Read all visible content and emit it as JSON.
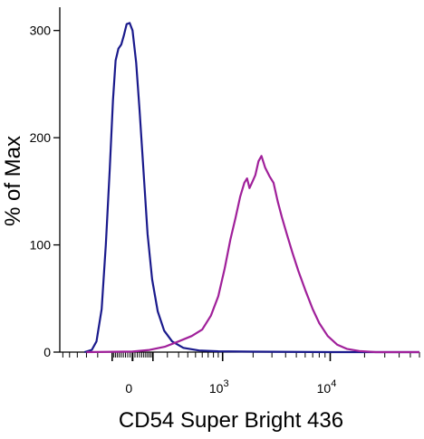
{
  "chart_data": {
    "type": "line",
    "title": "",
    "xlabel": "CD54 Super Bright 436",
    "ylabel": "% of Max",
    "x_scale": "biexponential",
    "x_tick_labels": [
      {
        "value": 0,
        "base": "0",
        "exp": ""
      },
      {
        "value": 1000,
        "base": "10",
        "exp": "3"
      },
      {
        "value": 10000,
        "base": "10",
        "exp": "4"
      }
    ],
    "y_ticks": [
      0,
      100,
      200,
      300
    ],
    "ylim": [
      0,
      320
    ],
    "grid": false,
    "series": [
      {
        "color": "#1a1a8c",
        "points": [
          [
            -320,
            0
          ],
          [
            -250,
            2
          ],
          [
            -210,
            10
          ],
          [
            -170,
            40
          ],
          [
            -140,
            100
          ],
          [
            -115,
            170
          ],
          [
            -95,
            235
          ],
          [
            -80,
            272
          ],
          [
            -65,
            283
          ],
          [
            -50,
            287
          ],
          [
            -38,
            295
          ],
          [
            -25,
            306
          ],
          [
            -12,
            307
          ],
          [
            0,
            300
          ],
          [
            15,
            270
          ],
          [
            30,
            225
          ],
          [
            50,
            165
          ],
          [
            70,
            110
          ],
          [
            95,
            68
          ],
          [
            130,
            38
          ],
          [
            175,
            20
          ],
          [
            240,
            10
          ],
          [
            350,
            4
          ],
          [
            550,
            1.5
          ],
          [
            900,
            0.8
          ],
          [
            2000,
            0.4
          ],
          [
            10000,
            0
          ],
          [
            60000,
            0
          ]
        ]
      },
      {
        "color": "#a0209a",
        "points": [
          [
            -300,
            0
          ],
          [
            0,
            0.5
          ],
          [
            80,
            2
          ],
          [
            180,
            5
          ],
          [
            300,
            10
          ],
          [
            450,
            15
          ],
          [
            600,
            21
          ],
          [
            750,
            34
          ],
          [
            900,
            52
          ],
          [
            1050,
            78
          ],
          [
            1200,
            105
          ],
          [
            1350,
            125
          ],
          [
            1500,
            145
          ],
          [
            1650,
            158
          ],
          [
            1750,
            162
          ],
          [
            1850,
            153
          ],
          [
            1950,
            158
          ],
          [
            2100,
            165
          ],
          [
            2250,
            178
          ],
          [
            2400,
            183
          ],
          [
            2600,
            172
          ],
          [
            2850,
            164
          ],
          [
            3100,
            158
          ],
          [
            3400,
            140
          ],
          [
            3700,
            126
          ],
          [
            4100,
            110
          ],
          [
            4600,
            93
          ],
          [
            5200,
            76
          ],
          [
            6000,
            58
          ],
          [
            7000,
            40
          ],
          [
            8000,
            27
          ],
          [
            9500,
            15
          ],
          [
            11500,
            7
          ],
          [
            14000,
            3
          ],
          [
            18000,
            1
          ],
          [
            25000,
            0
          ],
          [
            60000,
            0
          ]
        ]
      }
    ]
  }
}
